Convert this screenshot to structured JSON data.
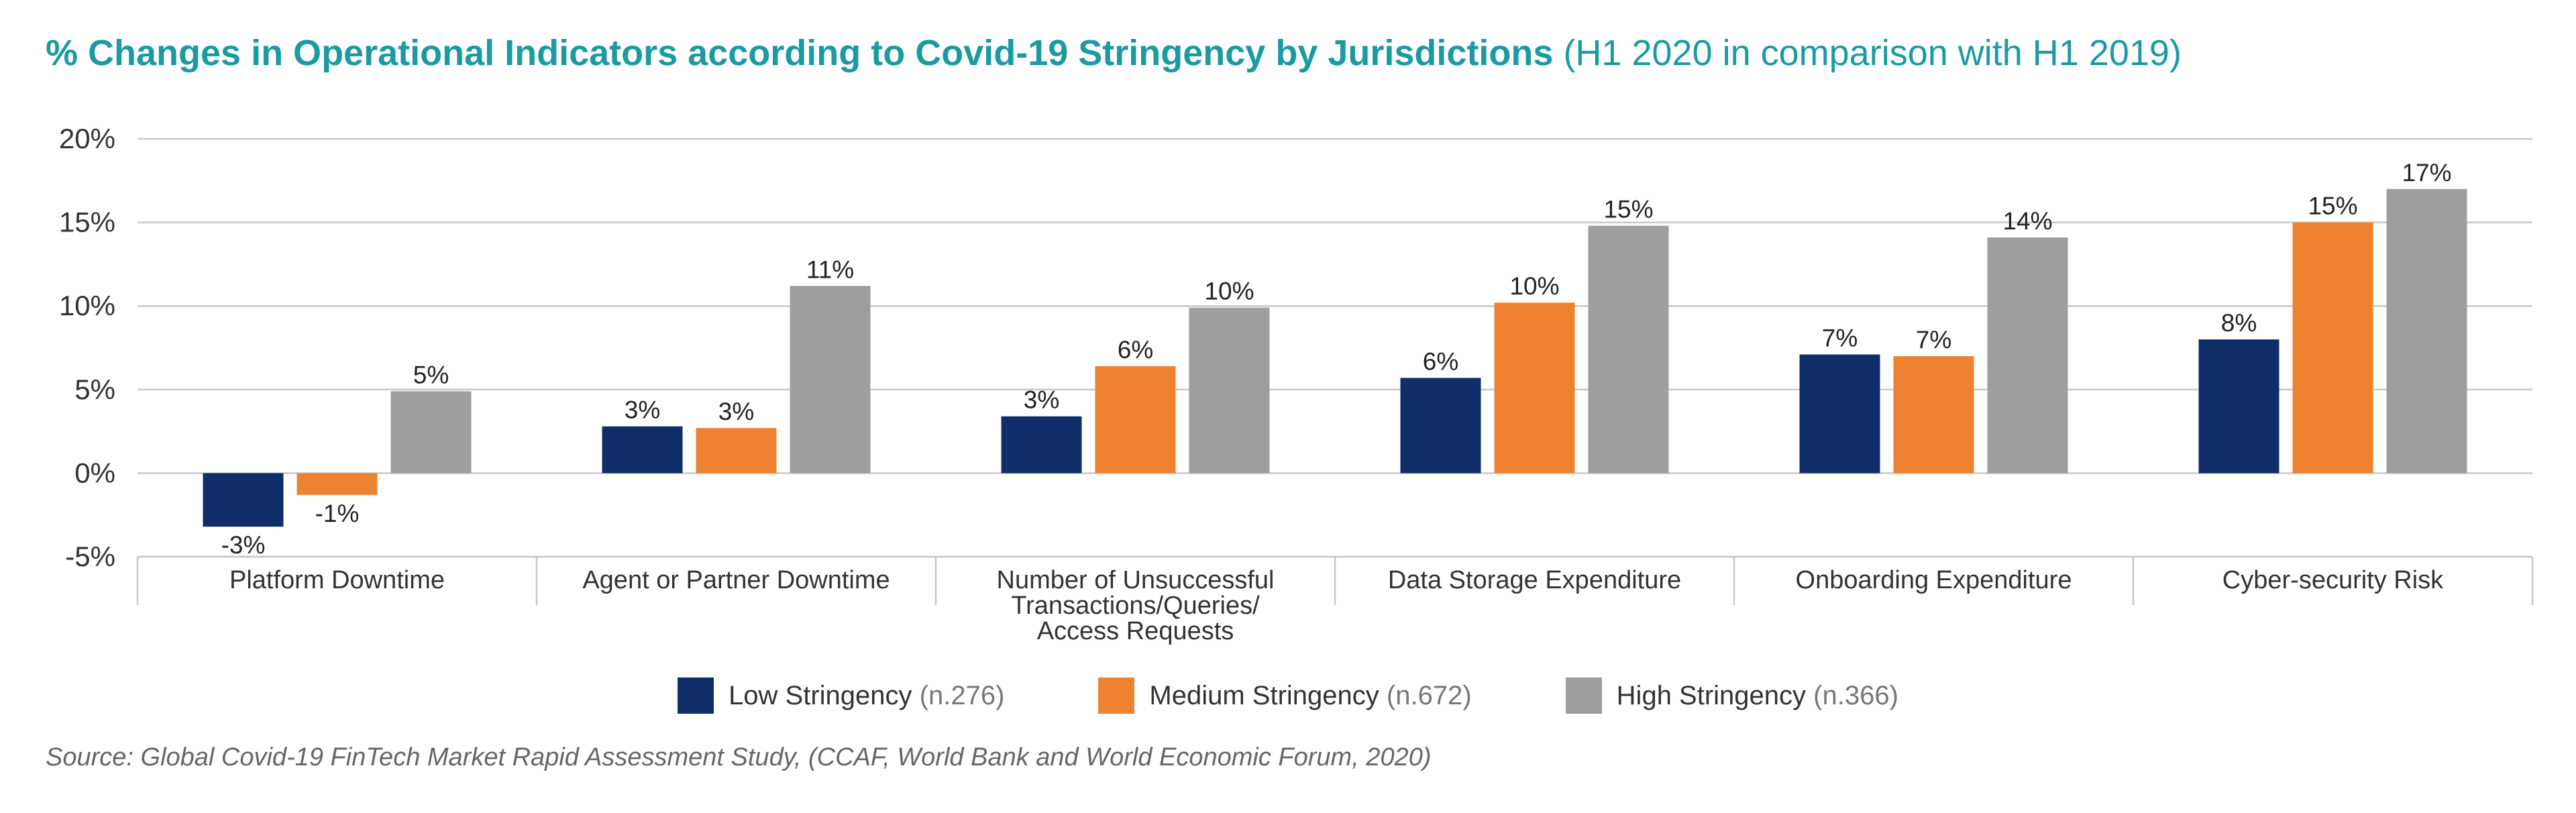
{
  "title": {
    "bold": "% Changes in Operational Indicators according to Covid-19 Stringency by Jurisdictions",
    "regular": "(H1 2020 in comparison with H1 2019)"
  },
  "source": "Source: Global Covid-19 FinTech Market Rapid Assessment Study, (CCAF, World Bank and World Economic Forum, 2020)",
  "chart_data": {
    "type": "bar",
    "title": "% Changes in Operational Indicators according to Covid-19 Stringency by Jurisdictions (H1 2020 in comparison with H1 2019)",
    "categories": [
      "Platform Downtime",
      "Agent or Partner Downtime",
      "Number of Unsuccessful Transactions/Queries/ Access Requests",
      "Data Storage Expenditure",
      "Onboarding Expenditure",
      "Cyber-security Risk"
    ],
    "category_lines": [
      [
        "Platform Downtime"
      ],
      [
        "Agent or Partner Downtime"
      ],
      [
        "Number of Unsuccessful",
        "Transactions/Queries/",
        "Access Requests"
      ],
      [
        "Data Storage Expenditure"
      ],
      [
        "Onboarding Expenditure"
      ],
      [
        "Cyber-security Risk"
      ]
    ],
    "series": [
      {
        "name": "Low Stringency",
        "note": "(n.276)",
        "color": "#0f2d69",
        "values": [
          -3.2,
          2.8,
          3.4,
          5.7,
          7.1,
          8.0
        ],
        "labels": [
          "-3%",
          "3%",
          "3%",
          "6%",
          "7%",
          "8%"
        ]
      },
      {
        "name": "Medium Stringency",
        "note": "(n.672)",
        "color": "#ef8231",
        "values": [
          -1.3,
          2.7,
          6.4,
          10.2,
          7.0,
          15.0
        ],
        "labels": [
          "-1%",
          "3%",
          "6%",
          "10%",
          "7%",
          "15%"
        ]
      },
      {
        "name": "High Stringency",
        "note": "(n.366)",
        "color": "#9e9e9e",
        "values": [
          4.9,
          11.2,
          9.9,
          14.8,
          14.1,
          17.0
        ],
        "labels": [
          "5%",
          "11%",
          "10%",
          "15%",
          "14%",
          "17%"
        ]
      }
    ],
    "yticks": [
      "20%",
      "15%",
      "10%",
      "5%",
      "0%",
      "-5%"
    ],
    "ytick_values": [
      20,
      15,
      10,
      5,
      0,
      -5
    ],
    "ylim": [
      -5,
      20
    ],
    "grid": true,
    "legend_position": "bottom-center"
  }
}
